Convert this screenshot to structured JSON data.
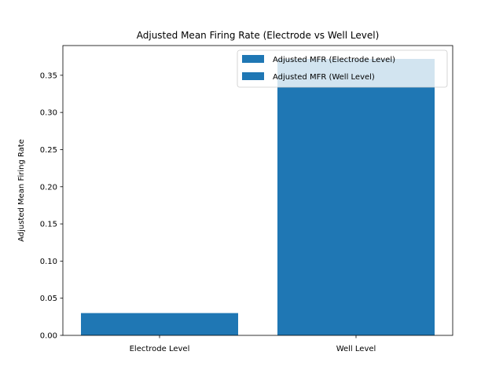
{
  "chart_data": {
    "type": "bar",
    "title": "Adjusted Mean Firing Rate (Electrode vs Well Level)",
    "xlabel": "",
    "ylabel": "Adjusted Mean Firing Rate",
    "categories": [
      "Electrode Level",
      "Well Level"
    ],
    "series": [
      {
        "name": "Adjusted MFR (Electrode Level)",
        "category": "Electrode Level",
        "value": 0.03,
        "color": "#1f77b4"
      },
      {
        "name": "Adjusted MFR (Well Level)",
        "category": "Well Level",
        "value": 0.372,
        "color": "#1f77b4"
      }
    ],
    "ylim": [
      0,
      0.39
    ],
    "yticks": [
      0.0,
      0.05,
      0.1,
      0.15,
      0.2,
      0.25,
      0.3,
      0.35
    ],
    "ytick_labels": [
      "0.00",
      "0.05",
      "0.10",
      "0.15",
      "0.20",
      "0.25",
      "0.30",
      "0.35"
    ],
    "grid": false,
    "legend_position": "top-right"
  }
}
